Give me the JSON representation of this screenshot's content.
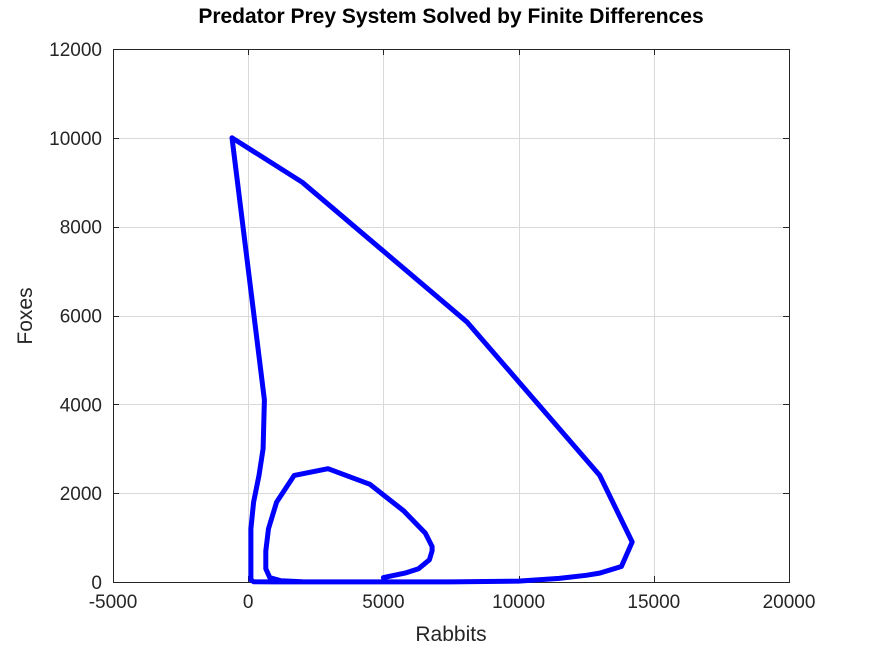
{
  "chart_data": {
    "type": "line",
    "title": "Predator Prey System Solved by Finite Differences",
    "xlabel": "Rabbits",
    "ylabel": "Foxes",
    "xlim": [
      -5000,
      20000
    ],
    "ylim": [
      0,
      12000
    ],
    "xticks": [
      -5000,
      0,
      5000,
      10000,
      15000,
      20000
    ],
    "yticks": [
      0,
      2000,
      4000,
      6000,
      8000,
      10000,
      12000
    ],
    "xtick_labels": [
      "-5000",
      "0",
      "5000",
      "10000",
      "15000",
      "20000"
    ],
    "ytick_labels": [
      "0",
      "2000",
      "4000",
      "6000",
      "8000",
      "10000",
      "12000"
    ],
    "grid": true,
    "line_color": "#0000ff",
    "series": [
      {
        "x": [
          5000,
          5800,
          6300,
          6700,
          6800,
          6800,
          6550,
          5750,
          4500,
          2950,
          1700,
          1050,
          750,
          650,
          650,
          800,
          1200,
          2000,
          3500,
          5000,
          7500,
          10000,
          11500,
          12500,
          13000,
          13800,
          14200,
          13000,
          8100,
          2000,
          -600,
          600,
          550,
          400,
          200,
          100,
          100,
          100,
          200,
          900,
          2500,
          5000
        ],
        "y": [
          100,
          200,
          300,
          500,
          700,
          800,
          1100,
          1600,
          2200,
          2550,
          2400,
          1800,
          1200,
          700,
          300,
          100,
          30,
          5,
          2,
          2,
          2,
          20,
          80,
          150,
          200,
          350,
          900,
          2400,
          5850,
          9000,
          10000,
          4100,
          3000,
          2400,
          1800,
          1200,
          600,
          50,
          5,
          2,
          2,
          5
        ]
      }
    ]
  }
}
